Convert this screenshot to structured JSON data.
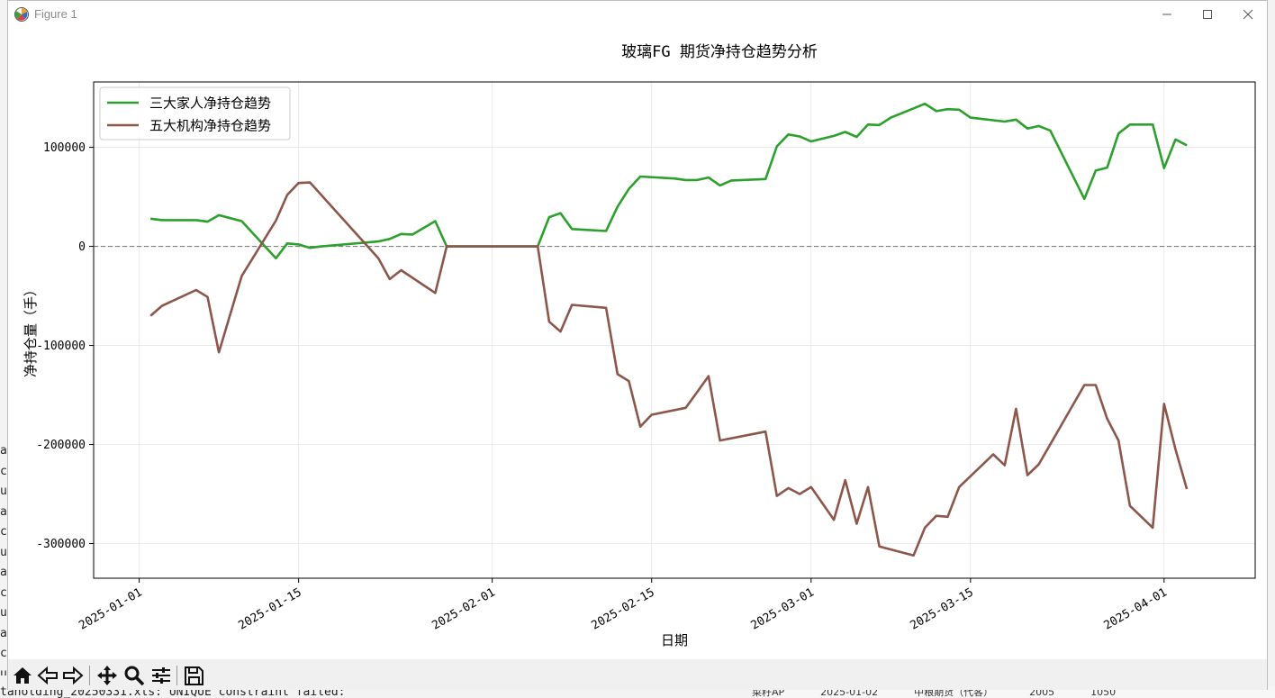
{
  "window": {
    "title": "Figure 1"
  },
  "background": {
    "terminal_fragments": [
      "at",
      "ce",
      "ur",
      "at",
      "ce",
      "ur",
      "at",
      "ce",
      "ur",
      "at",
      "ce",
      "ur"
    ],
    "terminal_bottom_line": "taholding_20250331.xls: UNIQUE constraint failed:",
    "table_fragments": [
      "菜籽AP",
      "2025-01-02",
      "中粮期货（代客）",
      "2005",
      "1050"
    ]
  },
  "toolbar": {
    "buttons": [
      {
        "name": "home-icon"
      },
      {
        "name": "back-arrow-icon"
      },
      {
        "name": "forward-arrow-icon"
      },
      {
        "name": "pan-move-icon"
      },
      {
        "name": "zoom-magnifier-icon"
      },
      {
        "name": "configure-subplots-icon"
      },
      {
        "name": "save-floppy-icon"
      }
    ]
  },
  "colors": {
    "series1": "#2ca02c",
    "series2": "#8c564b",
    "zero_line": "#808080",
    "grid": "#e6e6e6"
  },
  "chart_data": {
    "type": "line",
    "title": "玻璃FG 期货净持仓趋势分析",
    "xlabel": "日期",
    "ylabel": "净持仓量（手）",
    "xlim": [
      "2024-12-28",
      "2025-04-09"
    ],
    "ylim": [
      -335000,
      166000
    ],
    "xticks": [
      "2025-01-01",
      "2025-01-15",
      "2025-02-01",
      "2025-02-15",
      "2025-03-01",
      "2025-03-15",
      "2025-04-01"
    ],
    "yticks": [
      100000,
      0,
      -100000,
      -200000,
      -300000
    ],
    "grid": true,
    "zero_line": true,
    "legend_position": "upper-left",
    "series": [
      {
        "name": "三大家人净持仓趋势",
        "color": "#2ca02c",
        "points": [
          [
            "2025-01-02",
            28000
          ],
          [
            "2025-01-03",
            26500
          ],
          [
            "2025-01-06",
            26500
          ],
          [
            "2025-01-07",
            25000
          ],
          [
            "2025-01-08",
            31500
          ],
          [
            "2025-01-10",
            25500
          ],
          [
            "2025-01-13",
            -12000
          ],
          [
            "2025-01-14",
            3000
          ],
          [
            "2025-01-15",
            2000
          ],
          [
            "2025-01-16",
            -1500
          ],
          [
            "2025-01-17",
            0
          ],
          [
            "2025-01-22",
            5000
          ],
          [
            "2025-01-23",
            7500
          ],
          [
            "2025-01-24",
            12500
          ],
          [
            "2025-01-25",
            12000
          ],
          [
            "2025-01-27",
            25500
          ],
          [
            "2025-01-28",
            0
          ],
          [
            "2025-02-05",
            0
          ],
          [
            "2025-02-06",
            29500
          ],
          [
            "2025-02-07",
            33500
          ],
          [
            "2025-02-08",
            17500
          ],
          [
            "2025-02-11",
            15500
          ],
          [
            "2025-02-12",
            40000
          ],
          [
            "2025-02-13",
            58000
          ],
          [
            "2025-02-14",
            70500
          ],
          [
            "2025-02-17",
            68500
          ],
          [
            "2025-02-18",
            67000
          ],
          [
            "2025-02-19",
            67000
          ],
          [
            "2025-02-20",
            69500
          ],
          [
            "2025-02-21",
            61500
          ],
          [
            "2025-02-22",
            66500
          ],
          [
            "2025-02-25",
            68000
          ],
          [
            "2025-02-26",
            101000
          ],
          [
            "2025-02-27",
            113000
          ],
          [
            "2025-02-28",
            111000
          ],
          [
            "2025-03-01",
            106000
          ],
          [
            "2025-03-03",
            111500
          ],
          [
            "2025-03-04",
            115500
          ],
          [
            "2025-03-05",
            110500
          ],
          [
            "2025-03-06",
            123000
          ],
          [
            "2025-03-07",
            122500
          ],
          [
            "2025-03-08",
            130000
          ],
          [
            "2025-03-11",
            144000
          ],
          [
            "2025-03-12",
            136500
          ],
          [
            "2025-03-13",
            138500
          ],
          [
            "2025-03-14",
            138000
          ],
          [
            "2025-03-15",
            130000
          ],
          [
            "2025-03-18",
            126000
          ],
          [
            "2025-03-19",
            128000
          ],
          [
            "2025-03-20",
            119000
          ],
          [
            "2025-03-21",
            121500
          ],
          [
            "2025-03-22",
            117000
          ],
          [
            "2025-03-25",
            48000
          ],
          [
            "2025-03-26",
            76500
          ],
          [
            "2025-03-27",
            79500
          ],
          [
            "2025-03-28",
            114000
          ],
          [
            "2025-03-29",
            123000
          ],
          [
            "2025-03-31",
            123000
          ],
          [
            "2025-04-01",
            79000
          ],
          [
            "2025-04-02",
            108000
          ],
          [
            "2025-04-03",
            102000
          ]
        ]
      },
      {
        "name": "五大机构净持仓趋势",
        "color": "#8c564b",
        "points": [
          [
            "2025-01-02",
            -70000
          ],
          [
            "2025-01-03",
            -60000
          ],
          [
            "2025-01-06",
            -44000
          ],
          [
            "2025-01-07",
            -51000
          ],
          [
            "2025-01-08",
            -107000
          ],
          [
            "2025-01-10",
            -30000
          ],
          [
            "2025-01-13",
            26000
          ],
          [
            "2025-01-14",
            52000
          ],
          [
            "2025-01-15",
            64000
          ],
          [
            "2025-01-16",
            64500
          ],
          [
            "2025-01-22",
            -12000
          ],
          [
            "2025-01-23",
            -33000
          ],
          [
            "2025-01-24",
            -24000
          ],
          [
            "2025-01-27",
            -47000
          ],
          [
            "2025-01-28",
            0
          ],
          [
            "2025-02-05",
            0
          ],
          [
            "2025-02-06",
            -76000
          ],
          [
            "2025-02-07",
            -86000
          ],
          [
            "2025-02-08",
            -59000
          ],
          [
            "2025-02-11",
            -62000
          ],
          [
            "2025-02-12",
            -129000
          ],
          [
            "2025-02-13",
            -136000
          ],
          [
            "2025-02-14",
            -182000
          ],
          [
            "2025-02-15",
            -170000
          ],
          [
            "2025-02-18",
            -163000
          ],
          [
            "2025-02-19",
            -147000
          ],
          [
            "2025-02-20",
            -131000
          ],
          [
            "2025-02-21",
            -196000
          ],
          [
            "2025-02-25",
            -187000
          ],
          [
            "2025-02-26",
            -252000
          ],
          [
            "2025-02-27",
            -244000
          ],
          [
            "2025-02-28",
            -250000
          ],
          [
            "2025-03-01",
            -243000
          ],
          [
            "2025-03-03",
            -276000
          ],
          [
            "2025-03-04",
            -236000
          ],
          [
            "2025-03-05",
            -280000
          ],
          [
            "2025-03-06",
            -243000
          ],
          [
            "2025-03-07",
            -303000
          ],
          [
            "2025-03-10",
            -312000
          ],
          [
            "2025-03-11",
            -284000
          ],
          [
            "2025-03-12",
            -272000
          ],
          [
            "2025-03-13",
            -273000
          ],
          [
            "2025-03-14",
            -243000
          ],
          [
            "2025-03-17",
            -210000
          ],
          [
            "2025-03-18",
            -221000
          ],
          [
            "2025-03-19",
            -164000
          ],
          [
            "2025-03-20",
            -231000
          ],
          [
            "2025-03-21",
            -220000
          ],
          [
            "2025-03-25",
            -140000
          ],
          [
            "2025-03-26",
            -140000
          ],
          [
            "2025-03-27",
            -174000
          ],
          [
            "2025-03-28",
            -196000
          ],
          [
            "2025-03-29",
            -262000
          ],
          [
            "2025-03-31",
            -284000
          ],
          [
            "2025-04-01",
            -159000
          ],
          [
            "2025-04-02",
            -205000
          ],
          [
            "2025-04-03",
            -245000
          ]
        ]
      }
    ]
  }
}
